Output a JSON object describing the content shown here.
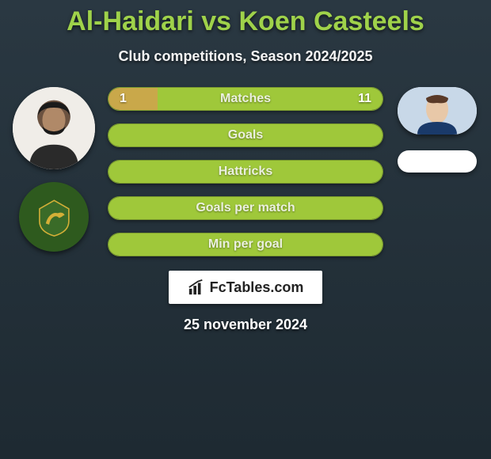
{
  "title": {
    "player1": "Al-Haidari",
    "vs": "vs",
    "player2": "Koen Casteels",
    "color": "#9fd24a"
  },
  "subtitle": "Club competitions, Season 2024/2025",
  "brand": "FcTables.com",
  "date": "25 november 2024",
  "colors": {
    "bar_primary": "#9fc83a",
    "bar_secondary": "#c9a84a",
    "bar_border": "#7a9a2e",
    "background": "#243039"
  },
  "left_player": {
    "has_avatar": true,
    "has_club": true,
    "club_color": "#2e5a1e"
  },
  "right_player": {
    "has_avatar": true,
    "has_club": false
  },
  "stats": [
    {
      "label": "Matches",
      "left_value": "1",
      "right_value": "11",
      "left_pct": 18,
      "right_pct": 82,
      "left_color": "#c9a84a",
      "right_color": "#9fc83a",
      "show_values": true
    },
    {
      "label": "Goals",
      "full_color": "#9fc83a",
      "show_values": false
    },
    {
      "label": "Hattricks",
      "full_color": "#9fc83a",
      "show_values": false
    },
    {
      "label": "Goals per match",
      "full_color": "#9fc83a",
      "show_values": false
    },
    {
      "label": "Min per goal",
      "full_color": "#9fc83a",
      "show_values": false
    }
  ],
  "bar_style": {
    "height": 30,
    "border_radius": 15,
    "font_size": 16,
    "gap": 16
  }
}
